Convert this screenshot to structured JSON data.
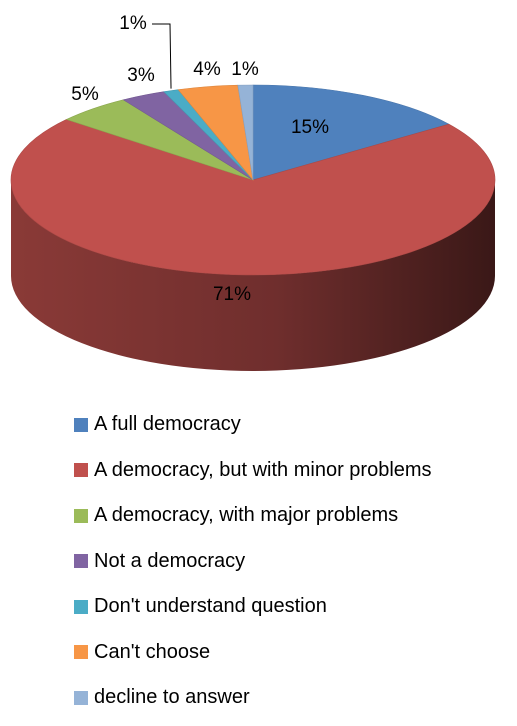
{
  "chart_data": {
    "type": "pie",
    "title": "",
    "style": "3d",
    "legend_position": "bottom",
    "slices": [
      {
        "name": "A full democracy",
        "value": 15,
        "label": "15%",
        "color": "#4F81BD"
      },
      {
        "name": "A democracy, but with minor problems",
        "value": 71,
        "label": "71%",
        "color": "#C0504D"
      },
      {
        "name": "A democracy, with major problems",
        "value": 5,
        "label": "5%",
        "color": "#9BBB59"
      },
      {
        "name": "Not a democracy",
        "value": 3,
        "label": "3%",
        "color": "#8064A2"
      },
      {
        "name": "Don't understand question",
        "value": 1,
        "label": "1%",
        "color": "#4BACC6"
      },
      {
        "name": "Can't choose",
        "value": 4,
        "label": "4%",
        "color": "#F79646"
      },
      {
        "name": "decline to answer",
        "value": 1,
        "label": "1%",
        "color": "#95B3D7"
      }
    ]
  }
}
